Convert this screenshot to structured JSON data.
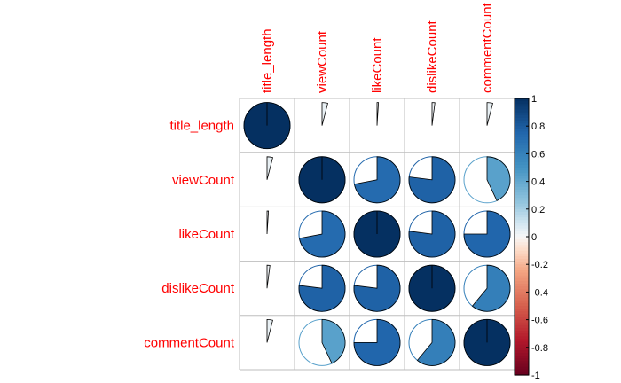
{
  "chart_data": {
    "type": "heatmap",
    "variables": [
      "title_length",
      "viewCount",
      "likeCount",
      "dislikeCount",
      "commentCount"
    ],
    "matrix": [
      [
        1.0,
        0.04,
        0.01,
        0.02,
        0.04
      ],
      [
        0.04,
        1.0,
        0.72,
        0.77,
        0.43
      ],
      [
        0.01,
        0.72,
        1.0,
        0.77,
        0.75
      ],
      [
        0.02,
        0.77,
        0.77,
        1.0,
        0.61
      ],
      [
        0.04,
        0.43,
        0.75,
        0.61,
        1.0
      ]
    ],
    "colorbar": {
      "range": [
        -1,
        1
      ],
      "ticks": [
        "1",
        "0.8",
        "0.6",
        "0.4",
        "0.2",
        "0",
        "-0.2",
        "-0.4",
        "-0.6",
        "-0.8",
        "-1"
      ]
    },
    "method": "pie",
    "grid": true,
    "colors": {
      "label": "#ff0000",
      "grid": "#bebebe",
      "neg_strong": "#67001f",
      "neutral": "#f7f7f7",
      "pos_strong": "#053061"
    }
  }
}
